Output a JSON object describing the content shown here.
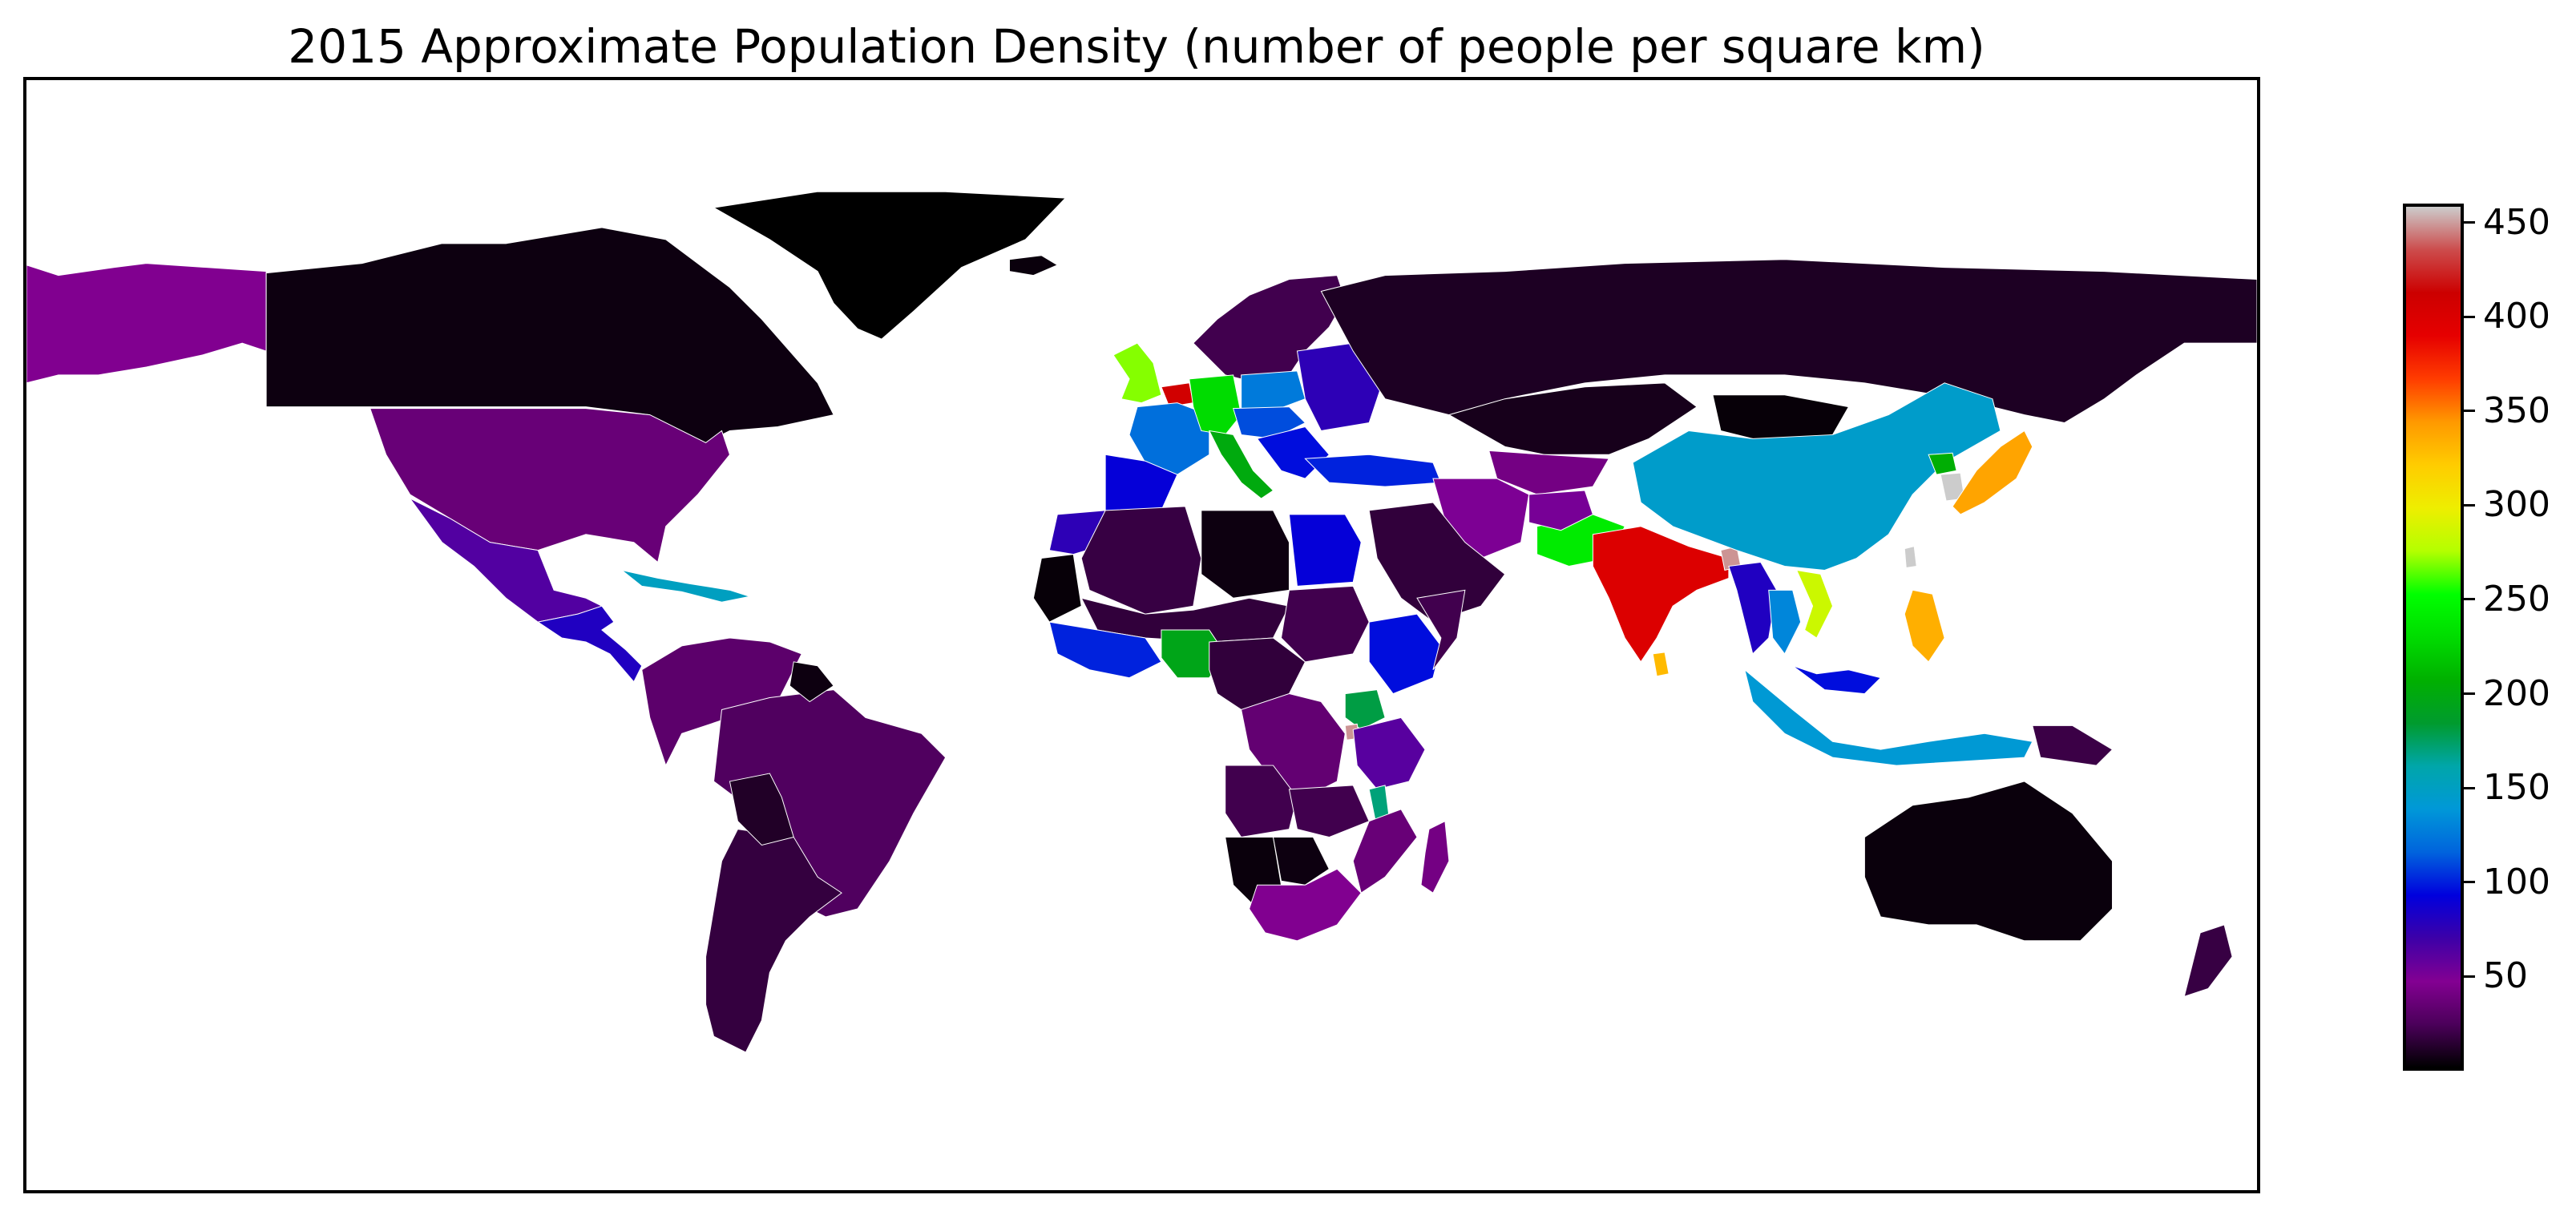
{
  "title": "2015 Approximate Population Density (number of people per square km)",
  "chart_data": {
    "type": "choropleth",
    "title": "2015 Approximate Population Density (number of people per square km)",
    "colormap": "nipy_spectral",
    "value_range": [
      0,
      460
    ],
    "colorbar": {
      "ticks": [
        50,
        100,
        150,
        200,
        250,
        300,
        350,
        400,
        450
      ],
      "tick_labels": [
        "50",
        "100",
        "150",
        "200",
        "250",
        "300",
        "350",
        "400",
        "450"
      ],
      "placement": "right"
    },
    "colorbar_stops": [
      {
        "value": 0,
        "color": "#000000"
      },
      {
        "value": 23,
        "color": "#4b005a"
      },
      {
        "value": 46,
        "color": "#830092"
      },
      {
        "value": 69,
        "color": "#3d00a8"
      },
      {
        "value": 92,
        "color": "#0000dd"
      },
      {
        "value": 115,
        "color": "#0063dd"
      },
      {
        "value": 138,
        "color": "#0098d8"
      },
      {
        "value": 161,
        "color": "#00a6aa"
      },
      {
        "value": 184,
        "color": "#009b2e"
      },
      {
        "value": 207,
        "color": "#00b000"
      },
      {
        "value": 230,
        "color": "#00dc00"
      },
      {
        "value": 253,
        "color": "#00ff00"
      },
      {
        "value": 276,
        "color": "#b4ff00"
      },
      {
        "value": 299,
        "color": "#eeee00"
      },
      {
        "value": 322,
        "color": "#ffcc00"
      },
      {
        "value": 345,
        "color": "#ff9900"
      },
      {
        "value": 368,
        "color": "#ff3c00"
      },
      {
        "value": 391,
        "color": "#e60000"
      },
      {
        "value": 414,
        "color": "#cc0000"
      },
      {
        "value": 437,
        "color": "#cc4c4c"
      },
      {
        "value": 460,
        "color": "#cccccc"
      }
    ],
    "regions": [
      {
        "region": "Alaska",
        "density": 45
      },
      {
        "region": "Canada",
        "density": 4
      },
      {
        "region": "Greenland",
        "density": 0
      },
      {
        "region": "United States",
        "density": 35
      },
      {
        "region": "Mexico",
        "density": 62
      },
      {
        "region": "Central America",
        "density": 80
      },
      {
        "region": "Caribbean",
        "density": 150
      },
      {
        "region": "South America North",
        "density": 30
      },
      {
        "region": "Brazil",
        "density": 25
      },
      {
        "region": "Argentina",
        "density": 16
      },
      {
        "region": "Bolivia",
        "density": 10
      },
      {
        "region": "Guianas",
        "density": 4
      },
      {
        "region": "Iceland",
        "density": 3
      },
      {
        "region": "Scandinavia",
        "density": 20
      },
      {
        "region": "United Kingdom",
        "density": 270
      },
      {
        "region": "Benelux",
        "density": 410
      },
      {
        "region": "France",
        "density": 120
      },
      {
        "region": "Iberia",
        "density": 90
      },
      {
        "region": "Germany",
        "density": 230
      },
      {
        "region": "Italy",
        "density": 200
      },
      {
        "region": "Poland",
        "density": 125
      },
      {
        "region": "Central Europe",
        "density": 110
      },
      {
        "region": "Balkans",
        "density": 95
      },
      {
        "region": "Turkey",
        "density": 100
      },
      {
        "region": "Eastern Europe",
        "density": 75
      },
      {
        "region": "Russia",
        "density": 9
      },
      {
        "region": "Kazakhstan",
        "density": 7
      },
      {
        "region": "Mongolia",
        "density": 2
      },
      {
        "region": "Central Asia",
        "density": 40
      },
      {
        "region": "Iran",
        "density": 48
      },
      {
        "region": "Arabia",
        "density": 15
      },
      {
        "region": "Pakistan",
        "density": 240
      },
      {
        "region": "Afghanistan",
        "density": 50
      },
      {
        "region": "India",
        "density": 400
      },
      {
        "region": "Bangladesh",
        "density": 450
      },
      {
        "region": "Sri Lanka",
        "density": 330
      },
      {
        "region": "China",
        "density": 145
      },
      {
        "region": "North Korea",
        "density": 205
      },
      {
        "region": "South Korea",
        "density": 460
      },
      {
        "region": "Japan",
        "density": 340
      },
      {
        "region": "Taiwan",
        "density": 460
      },
      {
        "region": "Philippines",
        "density": 335
      },
      {
        "region": "Vietnam",
        "density": 285
      },
      {
        "region": "Myanmar",
        "density": 80
      },
      {
        "region": "Thailand",
        "density": 130
      },
      {
        "region": "Indonesia",
        "density": 140
      },
      {
        "region": "Malaysia",
        "density": 95
      },
      {
        "region": "Papua New Guinea",
        "density": 18
      },
      {
        "region": "Australia",
        "density": 3
      },
      {
        "region": "New Zealand",
        "density": 17
      },
      {
        "region": "Morocco",
        "density": 75
      },
      {
        "region": "Algeria",
        "density": 17
      },
      {
        "region": "Libya",
        "density": 4
      },
      {
        "region": "Egypt",
        "density": 90
      },
      {
        "region": "Western Sahara",
        "density": 2
      },
      {
        "region": "Sahel",
        "density": 15
      },
      {
        "region": "West Africa Coast",
        "density": 100
      },
      {
        "region": "Nigeria",
        "density": 195
      },
      {
        "region": "Sudan",
        "density": 20
      },
      {
        "region": "Ethiopia",
        "density": 95
      },
      {
        "region": "Somalia",
        "density": 20
      },
      {
        "region": "Central Africa",
        "density": 15
      },
      {
        "region": "DR Congo",
        "density": 33
      },
      {
        "region": "Uganda",
        "density": 180
      },
      {
        "region": "Rwanda",
        "density": 450
      },
      {
        "region": "Tanzania",
        "density": 60
      },
      {
        "region": "Malawi",
        "density": 170
      },
      {
        "region": "Angola",
        "density": 20
      },
      {
        "region": "Namibia",
        "density": 3
      },
      {
        "region": "Botswana",
        "density": 4
      },
      {
        "region": "Zambia",
        "density": 20
      },
      {
        "region": "Mozambique",
        "density": 35
      },
      {
        "region": "South Africa",
        "density": 45
      },
      {
        "region": "Madagascar",
        "density": 40
      }
    ]
  }
}
